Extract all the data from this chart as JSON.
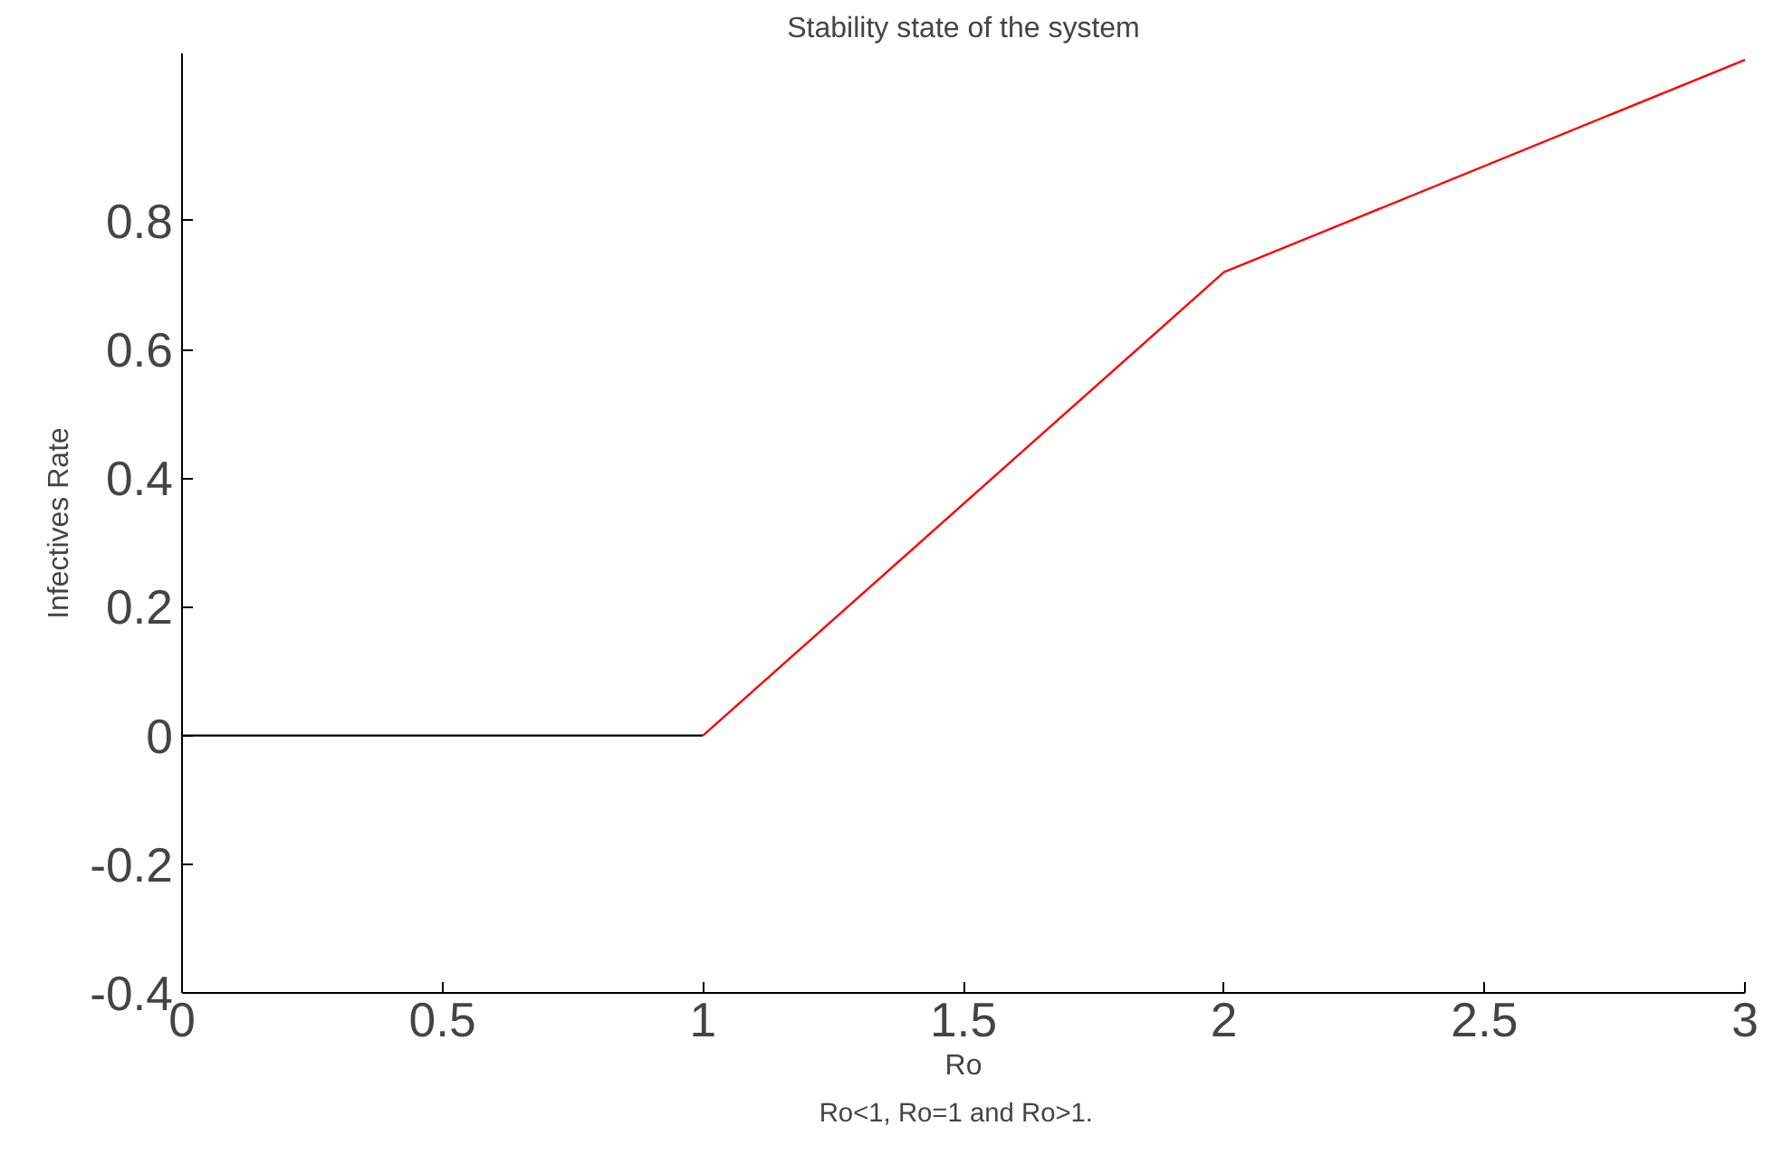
{
  "chart_data": {
    "type": "line",
    "title": "Stability state of the system",
    "xlabel": "Ro",
    "ylabel": "Infectives Rate",
    "annotations": [
      "Ro<1,  Ro=1 and  Ro>1."
    ],
    "series": [
      {
        "color": "#000000",
        "x": [
          0,
          1
        ],
        "values": [
          0,
          0
        ]
      },
      {
        "color": "#ff0000",
        "x": [
          1,
          2,
          3
        ],
        "values": [
          0,
          0.72,
          1.05
        ]
      }
    ],
    "xlim": [
      0,
      3
    ],
    "ylim": [
      -0.4,
      1.06
    ],
    "xticks": [
      0,
      0.5,
      1,
      1.5,
      2,
      2.5,
      3
    ],
    "yticks": [
      -0.4,
      -0.2,
      0,
      0.2,
      0.4,
      0.6,
      0.8
    ],
    "grid": false,
    "marker": "none",
    "line_style": "solid"
  }
}
